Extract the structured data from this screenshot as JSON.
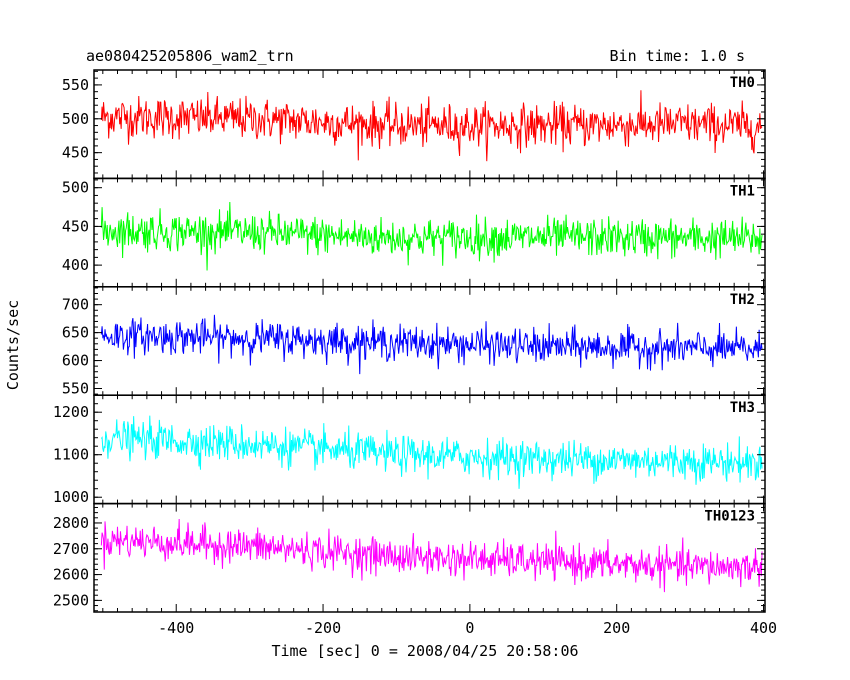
{
  "header": {
    "title": "ae080425205806_wam2_trn",
    "bin_time": "Bin time: 1.0 s"
  },
  "chart_data": {
    "type": "line",
    "title": "ae080425205806_wam2_trn",
    "subtitle": "Bin time: 1.0 s",
    "xlabel": "Time [sec] 0 = 2008/04/25 20:58:06",
    "ylabel": "Counts/sec",
    "xlim": [
      -512,
      402
    ],
    "x_ticks": [
      -400,
      -200,
      0,
      200,
      400
    ],
    "x_tick_labels": [
      "-400",
      "-200",
      "0",
      "200",
      "400"
    ],
    "panels": [
      {
        "name": "TH0",
        "color": "#ff0000",
        "ylim": [
          412,
          572
        ],
        "y_ticks": [
          450,
          500,
          550
        ],
        "y_tick_labels": [
          "450",
          "500",
          "550"
        ],
        "series": {
          "x_start": -502,
          "x_end": 398,
          "keypoints": [
            [
              -502,
              503
            ],
            [
              -300,
              500
            ],
            [
              -100,
              490
            ],
            [
              100,
              490
            ],
            [
              300,
              492
            ],
            [
              398,
              488
            ]
          ],
          "spread": 25
        }
      },
      {
        "name": "TH1",
        "color": "#00ff00",
        "ylim": [
          372,
          512
        ],
        "y_ticks": [
          400,
          450,
          500
        ],
        "y_tick_labels": [
          "400",
          "450",
          "500"
        ],
        "series": {
          "x_start": -502,
          "x_end": 398,
          "keypoints": [
            [
              -502,
              445
            ],
            [
              -300,
              442
            ],
            [
              -100,
              435
            ],
            [
              100,
              436
            ],
            [
              300,
              435
            ],
            [
              398,
              434
            ]
          ],
          "spread": 20
        }
      },
      {
        "name": "TH2",
        "color": "#0000ff",
        "ylim": [
          538,
          732
        ],
        "y_ticks": [
          550,
          600,
          650,
          700
        ],
        "y_tick_labels": [
          "550",
          "600",
          "650",
          "700"
        ],
        "series": {
          "x_start": -502,
          "x_end": 398,
          "keypoints": [
            [
              -502,
              645
            ],
            [
              -300,
              640
            ],
            [
              -100,
              632
            ],
            [
              100,
              625
            ],
            [
              300,
              622
            ],
            [
              398,
              620
            ]
          ],
          "spread": 25
        }
      },
      {
        "name": "TH3",
        "color": "#00ffff",
        "ylim": [
          985,
          1240
        ],
        "y_ticks": [
          1000,
          1100,
          1200
        ],
        "y_tick_labels": [
          "1000",
          "1100",
          "1200"
        ],
        "series": {
          "x_start": -502,
          "x_end": 398,
          "keypoints": [
            [
              -502,
              1140
            ],
            [
              -300,
              1125
            ],
            [
              -100,
              1100
            ],
            [
              100,
              1090
            ],
            [
              300,
              1085
            ],
            [
              398,
              1080
            ]
          ],
          "spread": 35
        }
      },
      {
        "name": "TH0123",
        "color": "#ff00ff",
        "ylim": [
          2455,
          2875
        ],
        "y_ticks": [
          2500,
          2600,
          2700,
          2800
        ],
        "y_tick_labels": [
          "2500",
          "2600",
          "2700",
          "2800"
        ],
        "series": {
          "x_start": -502,
          "x_end": 398,
          "keypoints": [
            [
              -502,
              2735
            ],
            [
              -300,
              2710
            ],
            [
              -100,
              2670
            ],
            [
              100,
              2650
            ],
            [
              300,
              2630
            ],
            [
              398,
              2630
            ]
          ],
          "spread": 55
        }
      }
    ],
    "grid": false,
    "legend": "panel labels top-right"
  }
}
